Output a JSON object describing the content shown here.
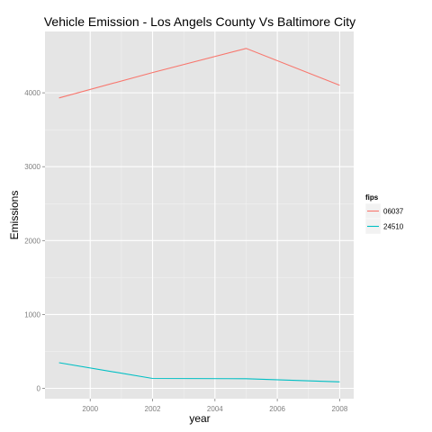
{
  "chart_data": {
    "type": "line",
    "title": "Vehicle Emission - Los Angels County Vs Baltimore City",
    "xlabel": "year",
    "ylabel": "Emissions",
    "xlim": [
      1998.55,
      2008.45
    ],
    "ylim": [
      -140,
      4830
    ],
    "x": [
      1999,
      2002,
      2005,
      2008
    ],
    "x_ticks": [
      2000,
      2002,
      2004,
      2006,
      2008
    ],
    "y_ticks": [
      0,
      1000,
      2000,
      3000,
      4000
    ],
    "grid": true,
    "legend": {
      "title": "fips",
      "position": "right"
    },
    "series": [
      {
        "name": "06037",
        "color": "#f8766d",
        "values": [
          3931,
          4274,
          4601,
          4101
        ]
      },
      {
        "name": "24510",
        "color": "#00bfc4",
        "values": [
          347,
          134,
          130,
          88
        ]
      }
    ]
  },
  "colors": {
    "panel_background": "#e5e5e5",
    "grid_major": "#ffffff",
    "grid_minor": "#f2f2f2"
  }
}
